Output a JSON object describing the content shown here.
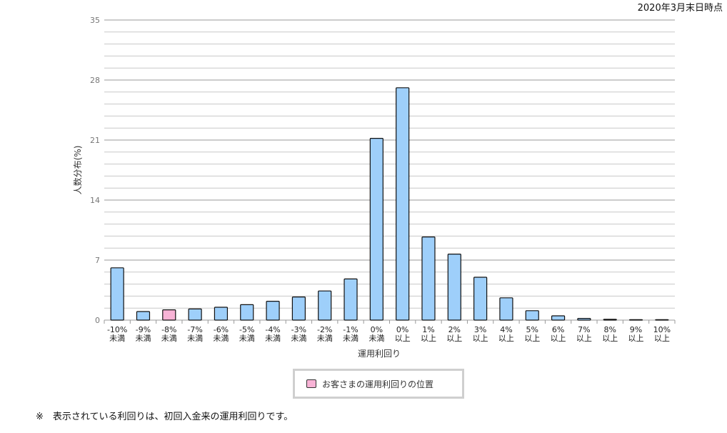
{
  "header": {
    "as_of": "2020年3月末日時点"
  },
  "legend": {
    "label": "お客さまの運用利回りの位置"
  },
  "footnote": {
    "text": "※　表示されている利回りは、初回入金来の運用利回りです。"
  },
  "colors": {
    "bar": "#9ecffa",
    "highlight": "#f8b3d6",
    "grid": "#c8c8c8",
    "stroke": "#111111"
  },
  "chart_data": {
    "type": "bar",
    "xlabel": "運用利回り",
    "ylabel": "人数分布(%)",
    "ylim": [
      0,
      35
    ],
    "yticks": [
      0,
      7,
      14,
      21,
      28,
      35
    ],
    "grid": true,
    "highlight_index": 2,
    "categories": [
      [
        "-10%",
        "未満"
      ],
      [
        "-9%",
        "未満"
      ],
      [
        "-8%",
        "未満"
      ],
      [
        "-7%",
        "未満"
      ],
      [
        "-6%",
        "未満"
      ],
      [
        "-5%",
        "未満"
      ],
      [
        "-4%",
        "未満"
      ],
      [
        "-3%",
        "未満"
      ],
      [
        "-2%",
        "未満"
      ],
      [
        "-1%",
        "未満"
      ],
      [
        "0%",
        "未満"
      ],
      [
        "0%",
        "以上"
      ],
      [
        "1%",
        "以上"
      ],
      [
        "2%",
        "以上"
      ],
      [
        "3%",
        "以上"
      ],
      [
        "4%",
        "以上"
      ],
      [
        "5%",
        "以上"
      ],
      [
        "6%",
        "以上"
      ],
      [
        "7%",
        "以上"
      ],
      [
        "8%",
        "以上"
      ],
      [
        "9%",
        "以上"
      ],
      [
        "10%",
        "以上"
      ]
    ],
    "values": [
      6.1,
      1.0,
      1.2,
      1.3,
      1.5,
      1.8,
      2.2,
      2.7,
      3.4,
      4.8,
      21.2,
      27.1,
      9.7,
      7.7,
      5.0,
      2.6,
      1.1,
      0.5,
      0.2,
      0.1,
      0.05,
      0.05
    ]
  }
}
